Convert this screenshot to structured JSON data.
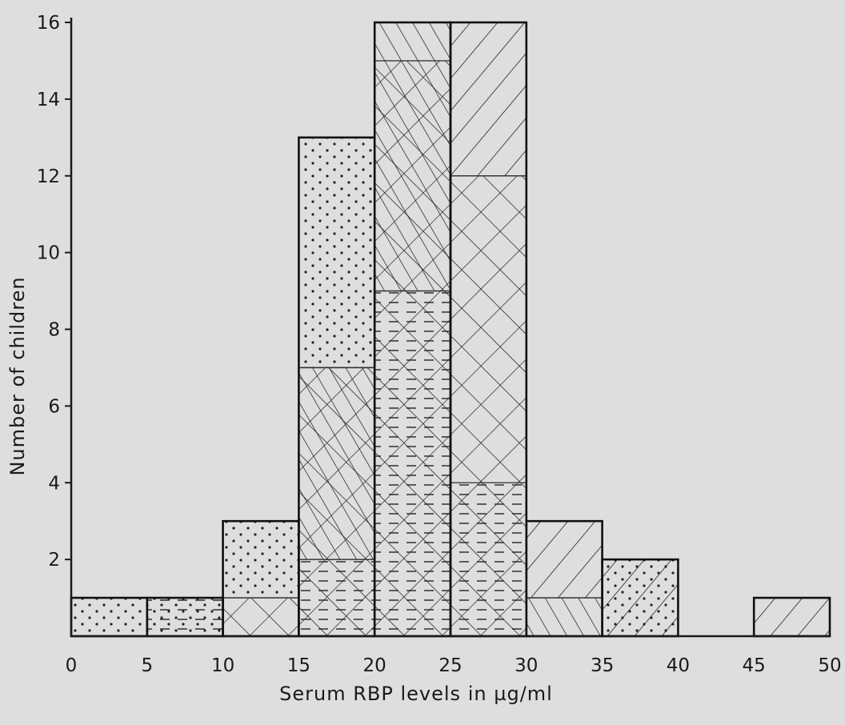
{
  "chart_data": {
    "type": "bar",
    "subtype": "stacked-histogram",
    "title": "",
    "xlabel": "Serum RBP levels in µg/ml",
    "ylabel": "Number of children",
    "xlim": [
      0,
      50
    ],
    "ylim": [
      0,
      16
    ],
    "xticks": [
      "0",
      "5",
      "10",
      "15",
      "20",
      "25",
      "30",
      "35",
      "40",
      "45",
      "50"
    ],
    "yticks": [
      "2",
      "4",
      "6",
      "8",
      "10",
      "12",
      "14",
      "16"
    ],
    "grid": false,
    "legend": "none",
    "bins": [
      {
        "from": 0,
        "to": 5,
        "segments": [
          {
            "pattern": "dots",
            "from": 0,
            "to": 1
          }
        ]
      },
      {
        "from": 5,
        "to": 10,
        "segments": [
          {
            "pattern": "dots",
            "from": 0,
            "to": 1
          },
          {
            "pattern": "dashes",
            "from": 0,
            "to": 1
          }
        ]
      },
      {
        "from": 10,
        "to": 15,
        "segments": [
          {
            "pattern": "crosshatch",
            "from": 0,
            "to": 1
          },
          {
            "pattern": "dots",
            "from": 1,
            "to": 3
          }
        ]
      },
      {
        "from": 15,
        "to": 20,
        "segments": [
          {
            "pattern": "dashes",
            "from": 0,
            "to": 2
          },
          {
            "pattern": "crosshatch",
            "from": 0,
            "to": 7
          },
          {
            "pattern": "forward-hatch",
            "from": 2,
            "to": 7
          },
          {
            "pattern": "dots",
            "from": 7,
            "to": 13
          }
        ]
      },
      {
        "from": 20,
        "to": 25,
        "segments": [
          {
            "pattern": "dashes",
            "from": 0,
            "to": 9
          },
          {
            "pattern": "crosshatch",
            "from": 0,
            "to": 15
          },
          {
            "pattern": "forward-hatch",
            "from": 9,
            "to": 16
          }
        ]
      },
      {
        "from": 25,
        "to": 30,
        "segments": [
          {
            "pattern": "dashes",
            "from": 0,
            "to": 4
          },
          {
            "pattern": "crosshatch",
            "from": 0,
            "to": 12
          },
          {
            "pattern": "back-hatch",
            "from": 12,
            "to": 16
          }
        ]
      },
      {
        "from": 30,
        "to": 35,
        "segments": [
          {
            "pattern": "forward-hatch",
            "from": 0,
            "to": 1
          },
          {
            "pattern": "back-hatch",
            "from": 1,
            "to": 3
          }
        ]
      },
      {
        "from": 35,
        "to": 40,
        "segments": [
          {
            "pattern": "dots",
            "from": 0,
            "to": 2
          },
          {
            "pattern": "back-hatch",
            "from": 0,
            "to": 2
          }
        ]
      },
      {
        "from": 40,
        "to": 45,
        "segments": []
      },
      {
        "from": 45,
        "to": 50,
        "segments": [
          {
            "pattern": "back-hatch",
            "from": 0,
            "to": 1
          }
        ]
      }
    ]
  }
}
